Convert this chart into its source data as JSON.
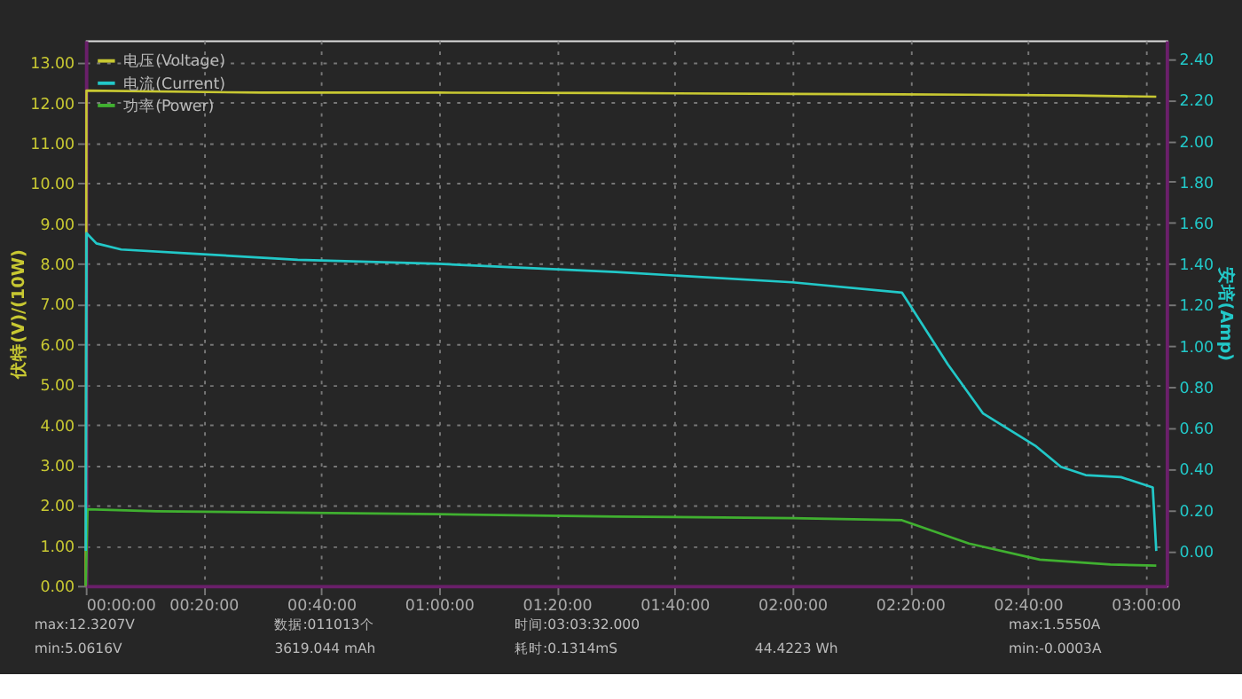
{
  "chart_data": {
    "type": "line",
    "xlabel": null,
    "ylabel": "伏特(V)/(10W)",
    "y2label": "安培(Amp)",
    "xlim": [
      0,
      3.059
    ],
    "ylim": [
      0,
      13.55
    ],
    "y2lim": [
      -0.17,
      2.49
    ],
    "xticks": [
      {
        "value": 0,
        "label": "00:00:00"
      },
      {
        "value": 0.33333,
        "label": "00:20:00"
      },
      {
        "value": 0.66667,
        "label": "00:40:00"
      },
      {
        "value": 1,
        "label": "01:00:00"
      },
      {
        "value": 1.33333,
        "label": "01:20:00"
      },
      {
        "value": 1.66667,
        "label": "01:40:00"
      },
      {
        "value": 2,
        "label": "02:00:00"
      },
      {
        "value": 2.33333,
        "label": "02:20:00"
      },
      {
        "value": 2.66667,
        "label": "02:40:00"
      },
      {
        "value": 3,
        "label": "03:00:00"
      }
    ],
    "yticks": [
      {
        "value": 0,
        "label": "0.00"
      },
      {
        "value": 1,
        "label": "1.00"
      },
      {
        "value": 2,
        "label": "2.00"
      },
      {
        "value": 3,
        "label": "3.00"
      },
      {
        "value": 4,
        "label": "4.00"
      },
      {
        "value": 5,
        "label": "5.00"
      },
      {
        "value": 6,
        "label": "6.00"
      },
      {
        "value": 7,
        "label": "7.00"
      },
      {
        "value": 8,
        "label": "8.00"
      },
      {
        "value": 9,
        "label": "9.00"
      },
      {
        "value": 10,
        "label": "10.00"
      },
      {
        "value": 11,
        "label": "11.00"
      },
      {
        "value": 12,
        "label": "12.00"
      },
      {
        "value": 13,
        "label": "13.00"
      }
    ],
    "y2ticks": [
      {
        "value": 0,
        "label": "0.00"
      },
      {
        "value": 0.2,
        "label": "0.20"
      },
      {
        "value": 0.4,
        "label": "0.40"
      },
      {
        "value": 0.6,
        "label": "0.60"
      },
      {
        "value": 0.8,
        "label": "0.80"
      },
      {
        "value": 1,
        "label": "1.00"
      },
      {
        "value": 1.2,
        "label": "1.20"
      },
      {
        "value": 1.4,
        "label": "1.40"
      },
      {
        "value": 1.6,
        "label": "1.60"
      },
      {
        "value": 1.8,
        "label": "1.80"
      },
      {
        "value": 2,
        "label": "2.00"
      },
      {
        "value": 2.2,
        "label": "2.20"
      },
      {
        "value": 2.4,
        "label": "2.40"
      }
    ],
    "grid": true,
    "legend": "top left",
    "marker": "none",
    "line_style": "solid",
    "series": [
      {
        "name": "电压(Voltage)",
        "color": "#c8c832",
        "x": [
          0,
          0.002,
          0.5,
          1,
          1.5,
          2,
          2.5,
          2.8,
          3.03
        ],
        "values": [
          0,
          12.3,
          12.25,
          12.25,
          12.24,
          12.22,
          12.2,
          12.18,
          12.15
        ]
      },
      {
        "name": "电流(Current)",
        "color": "#22c8c8",
        "axis": "y2",
        "x": [
          0,
          0.002,
          0.03,
          0.1,
          0.3,
          0.6,
          1,
          1.5,
          2,
          2.31,
          2.44,
          2.54,
          2.69,
          2.76,
          2.83,
          2.93,
          3.02,
          3.03
        ],
        "values": [
          0,
          1.55,
          1.5,
          1.47,
          1.45,
          1.42,
          1.4,
          1.36,
          1.31,
          1.26,
          0.91,
          0.67,
          0.51,
          0.41,
          0.37,
          0.36,
          0.31,
          0
        ]
      },
      {
        "name": "功率(Power)",
        "color": "#40b030",
        "x": [
          0,
          0.005,
          0.2,
          1,
          1.5,
          2,
          2.31,
          2.5,
          2.7,
          2.9,
          3.03
        ],
        "values": [
          0,
          1.9,
          1.85,
          1.78,
          1.72,
          1.68,
          1.63,
          1.05,
          0.65,
          0.53,
          0.5
        ]
      }
    ],
    "annotations": [
      "max:12.3207V",
      "min:5.0616V",
      "数据:011013个",
      "3619.044 mAh",
      "时间:03:03:32.000",
      "耗时:0.1314mS",
      "44.4223 Wh",
      "max:1.5550A",
      "min:-0.0003A"
    ]
  }
}
